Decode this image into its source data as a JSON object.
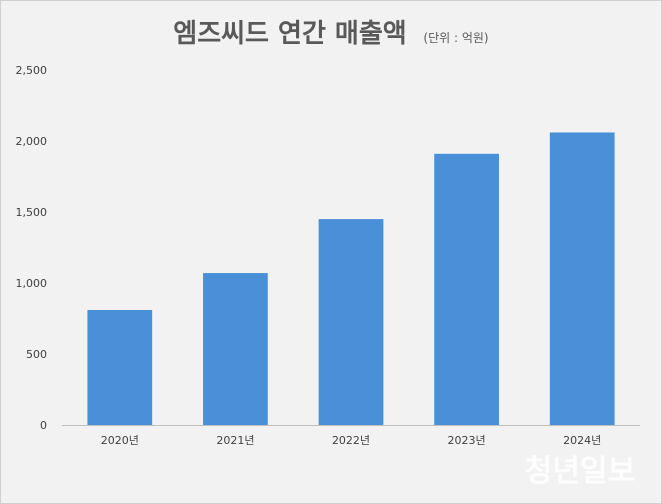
{
  "chart_data": {
    "type": "bar",
    "title": "엠즈씨드 연간 매출액",
    "unit_label": "(단위 : 억원)",
    "categories": [
      "2020년",
      "2021년",
      "2022년",
      "2023년",
      "2024년"
    ],
    "values": [
      810,
      1070,
      1450,
      1910,
      2060
    ],
    "ylim": [
      0,
      2500
    ],
    "yticks": [
      "0",
      "500",
      "1,000",
      "1,500",
      "2,000",
      "2,500"
    ],
    "ytick_values": [
      0,
      500,
      1000,
      1500,
      2000,
      2500
    ],
    "xlabel": "",
    "ylabel": "",
    "grid": false,
    "legend": "none",
    "bar_color": "#4a90d9"
  },
  "watermark": "청년일보"
}
